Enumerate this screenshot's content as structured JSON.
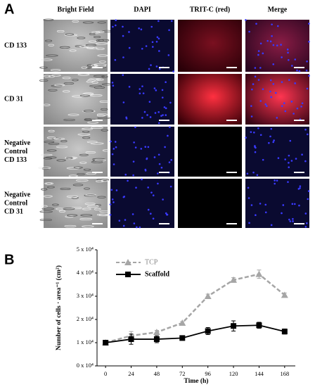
{
  "panel_a": {
    "label": "A",
    "columns": [
      "Bright Field",
      "DAPI",
      "TRIT-C (red)",
      "Merge"
    ],
    "rows": [
      [
        "CD 133"
      ],
      [
        "CD 31"
      ],
      [
        "Negative",
        "Control",
        "CD 133"
      ],
      [
        "Negative",
        "Control",
        "CD 31"
      ]
    ]
  },
  "chart_data": {
    "type": "line",
    "panel_label": "B",
    "x_label": "Time (h)",
    "y_label": "Number of cells · area⁻¹ (cm²)",
    "x": [
      0,
      24,
      48,
      72,
      96,
      120,
      144,
      168
    ],
    "series": [
      {
        "name": "TCP",
        "color": "#a6a6a6",
        "marker": "triangle",
        "dashed": true,
        "values": [
          10000,
          13000,
          14500,
          18500,
          30000,
          37000,
          39500,
          30500
        ],
        "errors": [
          300,
          1800,
          800,
          600,
          900,
          1000,
          1800,
          900
        ]
      },
      {
        "name": "Scaffold",
        "color": "#000000",
        "marker": "square",
        "dashed": false,
        "values": [
          10000,
          11500,
          11500,
          12000,
          15000,
          17200,
          17500,
          14800
        ],
        "errors": [
          800,
          2200,
          1500,
          700,
          1500,
          2200,
          1300,
          1100
        ]
      }
    ],
    "xlim": [
      -8,
      178
    ],
    "xticks": [
      0,
      24,
      48,
      72,
      96,
      120,
      144,
      168
    ],
    "ylim": [
      0,
      50000
    ],
    "yticks": [
      {
        "value": 0,
        "label": "0 x 10⁴"
      },
      {
        "value": 10000,
        "label": "1 x 10⁴"
      },
      {
        "value": 20000,
        "label": "2 x 10⁴"
      },
      {
        "value": 30000,
        "label": "3 x 10⁴"
      },
      {
        "value": 40000,
        "label": "4 x 10⁴"
      },
      {
        "value": 50000,
        "label": "5 x 10⁴"
      }
    ],
    "legend": "upper-left"
  }
}
